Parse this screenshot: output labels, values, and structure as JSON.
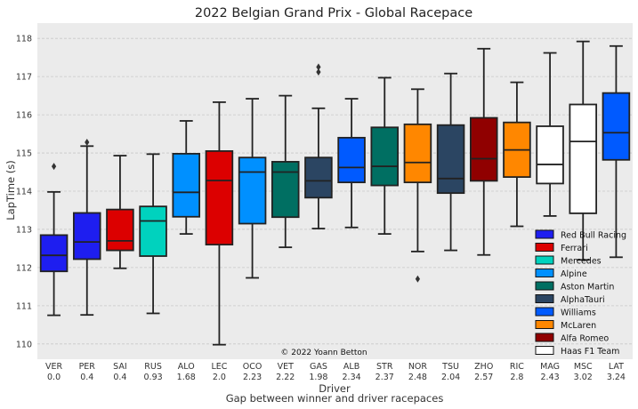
{
  "chart_data": {
    "type": "box",
    "title": "2022 Belgian Grand Prix - Global Racepace",
    "ylabel": "LapTime (s)",
    "xlabel": "Driver",
    "xlabel2": "Gap between winner and driver racepaces",
    "ylim": [
      109.6,
      118.4
    ],
    "yticks": [
      110,
      111,
      112,
      113,
      114,
      115,
      116,
      117,
      118
    ],
    "grid": true,
    "legend_position": "lower-right",
    "copyright": "© 2022 Yoann Betton",
    "legend": [
      {
        "name": "Red Bull Racing",
        "color": "#1e1ef0"
      },
      {
        "name": "Ferrari",
        "color": "#dc0000"
      },
      {
        "name": "Mercedes",
        "color": "#00d2be"
      },
      {
        "name": "Alpine",
        "color": "#0090ff"
      },
      {
        "name": "Aston Martin",
        "color": "#006f62"
      },
      {
        "name": "AlphaTauri",
        "color": "#2b4562"
      },
      {
        "name": "Williams",
        "color": "#005aff"
      },
      {
        "name": "McLaren",
        "color": "#ff8700"
      },
      {
        "name": "Alfa Romeo",
        "color": "#900000"
      },
      {
        "name": "Haas F1 Team",
        "color": "#ffffff"
      }
    ],
    "drivers": [
      {
        "driver": "VER",
        "gap": "0.0",
        "color": "#1e1ef0",
        "whislo": 110.75,
        "q1": 111.9,
        "med": 112.32,
        "q3": 112.85,
        "whishi": 113.98,
        "fliers": [
          114.65
        ]
      },
      {
        "driver": "PER",
        "gap": "0.4",
        "color": "#1e1ef0",
        "whislo": 110.76,
        "q1": 112.22,
        "med": 112.67,
        "q3": 113.43,
        "whishi": 115.18,
        "fliers": [
          115.28
        ]
      },
      {
        "driver": "SAI",
        "gap": "0.4",
        "color": "#dc0000",
        "whislo": 111.98,
        "q1": 112.45,
        "med": 112.7,
        "q3": 113.52,
        "whishi": 114.93,
        "fliers": []
      },
      {
        "driver": "RUS",
        "gap": "0.93",
        "color": "#00d2be",
        "whislo": 110.8,
        "q1": 112.3,
        "med": 113.22,
        "q3": 113.6,
        "whishi": 114.97,
        "fliers": []
      },
      {
        "driver": "ALO",
        "gap": "1.68",
        "color": "#0090ff",
        "whislo": 112.88,
        "q1": 113.33,
        "med": 113.97,
        "q3": 114.98,
        "whishi": 115.84,
        "fliers": []
      },
      {
        "driver": "LEC",
        "gap": "2.0",
        "color": "#dc0000",
        "whislo": 109.98,
        "q1": 112.6,
        "med": 114.28,
        "q3": 115.05,
        "whishi": 116.33,
        "fliers": []
      },
      {
        "driver": "OCO",
        "gap": "2.23",
        "color": "#0090ff",
        "whislo": 111.73,
        "q1": 113.15,
        "med": 114.5,
        "q3": 114.88,
        "whishi": 116.42,
        "fliers": []
      },
      {
        "driver": "VET",
        "gap": "2.22",
        "color": "#006f62",
        "whislo": 112.53,
        "q1": 113.32,
        "med": 114.5,
        "q3": 114.77,
        "whishi": 116.5,
        "fliers": []
      },
      {
        "driver": "GAS",
        "gap": "1.98",
        "color": "#2b4562",
        "whislo": 113.02,
        "q1": 113.83,
        "med": 114.27,
        "q3": 114.88,
        "whishi": 116.17,
        "fliers": [
          117.12,
          117.25
        ]
      },
      {
        "driver": "ALB",
        "gap": "2.34",
        "color": "#005aff",
        "whislo": 113.05,
        "q1": 114.23,
        "med": 114.62,
        "q3": 115.4,
        "whishi": 116.42,
        "fliers": []
      },
      {
        "driver": "STR",
        "gap": "2.37",
        "color": "#006f62",
        "whislo": 112.88,
        "q1": 114.15,
        "med": 114.65,
        "q3": 115.67,
        "whishi": 116.97,
        "fliers": []
      },
      {
        "driver": "NOR",
        "gap": "2.48",
        "color": "#ff8700",
        "whislo": 112.42,
        "q1": 114.23,
        "med": 114.75,
        "q3": 115.75,
        "whishi": 116.67,
        "fliers": [
          111.7
        ]
      },
      {
        "driver": "TSU",
        "gap": "2.04",
        "color": "#2b4562",
        "whislo": 112.45,
        "q1": 113.95,
        "med": 114.33,
        "q3": 115.73,
        "whishi": 117.08,
        "fliers": []
      },
      {
        "driver": "ZHO",
        "gap": "2.57",
        "color": "#900000",
        "whislo": 112.33,
        "q1": 114.27,
        "med": 114.85,
        "q3": 115.92,
        "whishi": 117.73,
        "fliers": []
      },
      {
        "driver": "RIC",
        "gap": "2.8",
        "color": "#ff8700",
        "whislo": 113.08,
        "q1": 114.37,
        "med": 115.08,
        "q3": 115.8,
        "whishi": 116.85,
        "fliers": []
      },
      {
        "driver": "MAG",
        "gap": "2.43",
        "color": "#ffffff",
        "whislo": 113.35,
        "q1": 114.2,
        "med": 114.7,
        "q3": 115.7,
        "whishi": 117.62,
        "fliers": []
      },
      {
        "driver": "MSC",
        "gap": "3.02",
        "color": "#ffffff",
        "whislo": 112.2,
        "q1": 113.42,
        "med": 115.3,
        "q3": 116.27,
        "whishi": 117.92,
        "fliers": []
      },
      {
        "driver": "LAT",
        "gap": "3.24",
        "color": "#005aff",
        "whislo": 112.27,
        "q1": 114.82,
        "med": 115.53,
        "q3": 116.57,
        "whishi": 117.8,
        "fliers": []
      }
    ]
  }
}
